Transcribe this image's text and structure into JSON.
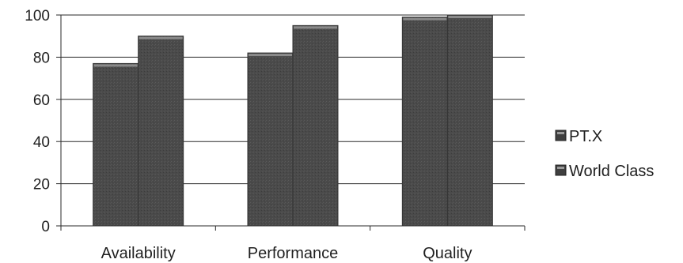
{
  "chart_data": {
    "type": "bar",
    "title": "",
    "xlabel": "",
    "ylabel": "",
    "categories": [
      "Availability",
      "Performance",
      "Quality"
    ],
    "series": [
      {
        "name": "PT.X",
        "values": [
          77,
          82,
          99
        ],
        "color": "#4a4a4a"
      },
      {
        "name": "World Class",
        "values": [
          90,
          95,
          100
        ],
        "color": "#4a4a4a"
      }
    ],
    "ylim": [
      0,
      100
    ],
    "yticks": [
      0,
      20,
      40,
      60,
      80,
      100
    ],
    "grid": true,
    "legend_position": "right"
  }
}
